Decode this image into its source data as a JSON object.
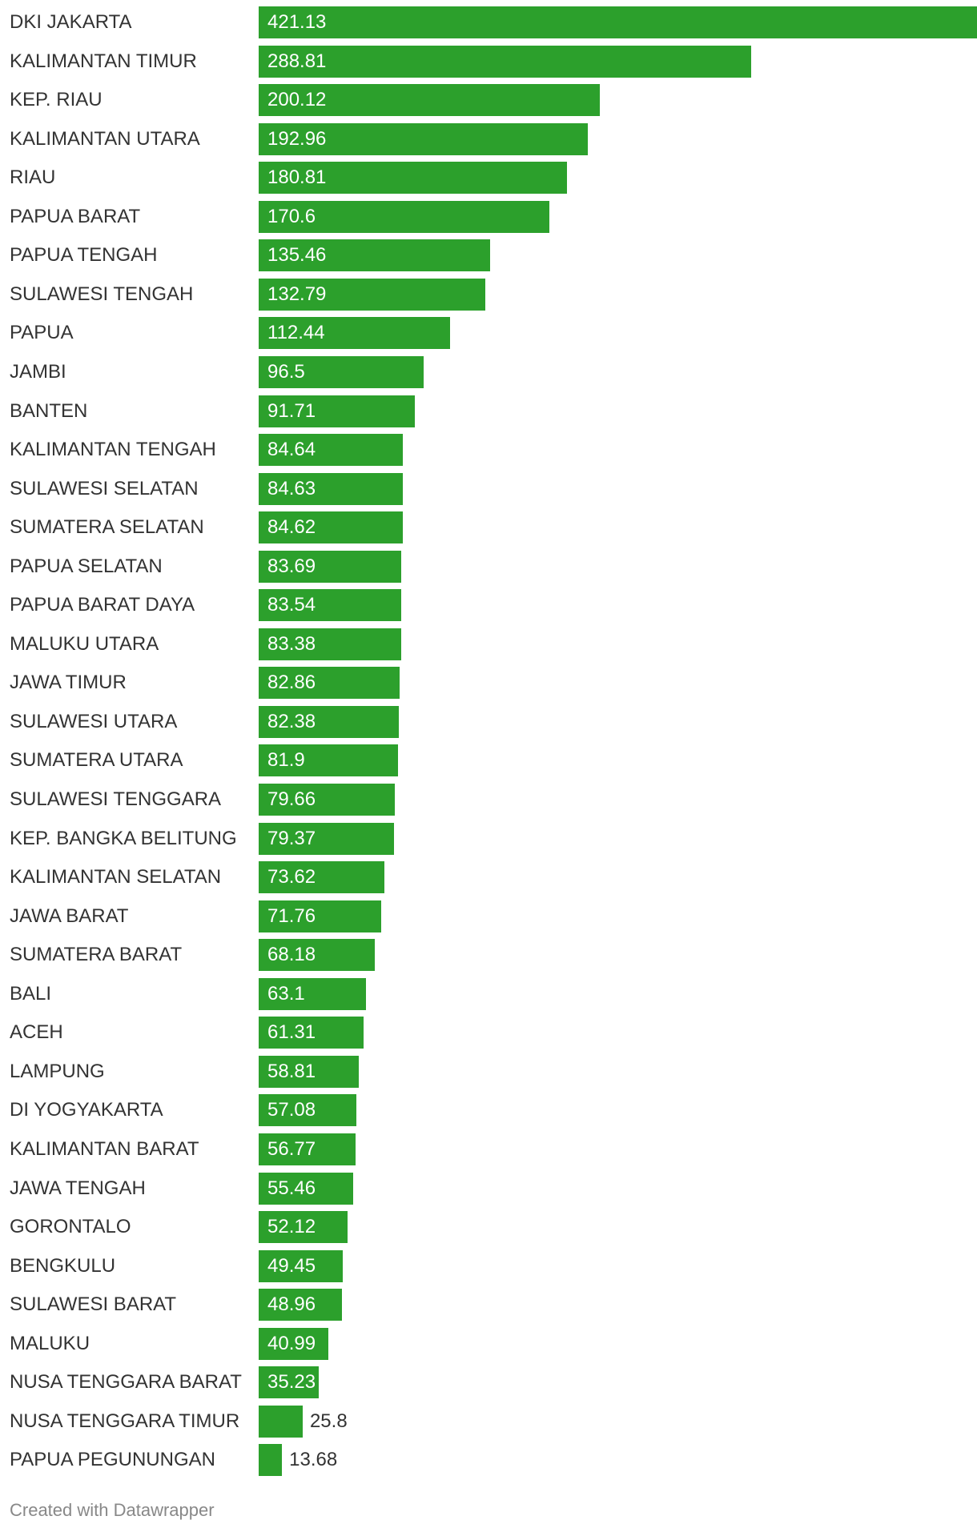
{
  "chart_data": {
    "type": "bar",
    "orientation": "horizontal",
    "categories": [
      "DKI JAKARTA",
      "KALIMANTAN TIMUR",
      "KEP. RIAU",
      "KALIMANTAN UTARA",
      "RIAU",
      "PAPUA BARAT",
      "PAPUA TENGAH",
      "SULAWESI TENGAH",
      "PAPUA",
      "JAMBI",
      "BANTEN",
      "KALIMANTAN TENGAH",
      "SULAWESI SELATAN",
      "SUMATERA SELATAN",
      "PAPUA SELATAN",
      "PAPUA BARAT DAYA",
      "MALUKU UTARA",
      "JAWA TIMUR",
      "SULAWESI UTARA",
      "SUMATERA UTARA",
      "SULAWESI TENGGARA",
      "KEP. BANGKA BELITUNG",
      "KALIMANTAN SELATAN",
      "JAWA BARAT",
      "SUMATERA BARAT",
      "BALI",
      "ACEH",
      "LAMPUNG",
      "DI YOGYAKARTA",
      "KALIMANTAN BARAT",
      "JAWA TENGAH",
      "GORONTALO",
      "BENGKULU",
      "SULAWESI BARAT",
      "MALUKU",
      "NUSA TENGGARA BARAT",
      "NUSA TENGGARA TIMUR",
      "PAPUA PEGUNUNGAN"
    ],
    "values": [
      421.13,
      288.81,
      200.12,
      192.96,
      180.81,
      170.6,
      135.46,
      132.79,
      112.44,
      96.5,
      91.71,
      84.64,
      84.63,
      84.62,
      83.69,
      83.54,
      83.38,
      82.86,
      82.38,
      81.9,
      79.66,
      79.37,
      73.62,
      71.76,
      68.18,
      63.1,
      61.31,
      58.81,
      57.08,
      56.77,
      55.46,
      52.12,
      49.45,
      48.96,
      40.99,
      35.23,
      25.8,
      13.68
    ],
    "value_labels": [
      "421.13",
      "288.81",
      "200.12",
      "192.96",
      "180.81",
      "170.6",
      "135.46",
      "132.79",
      "112.44",
      "96.5",
      "91.71",
      "84.64",
      "84.63",
      "84.62",
      "83.69",
      "83.54",
      "83.38",
      "82.86",
      "82.38",
      "81.9",
      "79.66",
      "79.37",
      "73.62",
      "71.76",
      "68.18",
      "63.1",
      "61.31",
      "58.81",
      "57.08",
      "56.77",
      "55.46",
      "52.12",
      "49.45",
      "48.96",
      "40.99",
      "35.23",
      "25.8",
      "13.68"
    ],
    "xlim": [
      0,
      421.13
    ],
    "bar_color": "#2ca02c",
    "title": "",
    "xlabel": "",
    "ylabel": "",
    "grid": false,
    "legend": "none"
  },
  "footer": {
    "credit": "Created with Datawrapper"
  }
}
